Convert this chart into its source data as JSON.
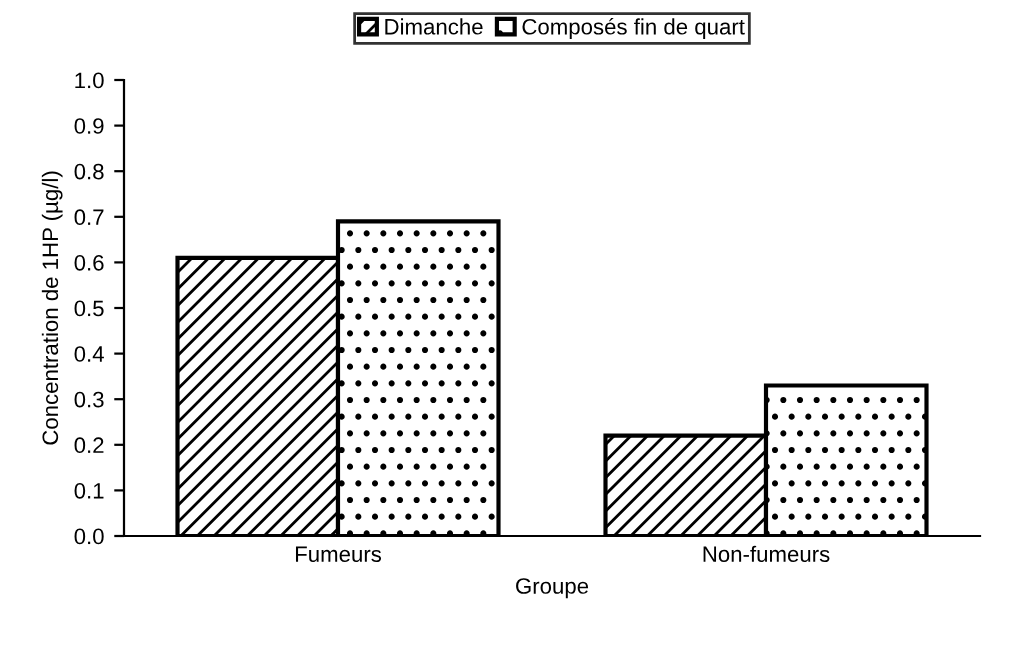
{
  "chart_data": {
    "type": "bar",
    "xlabel": "Groupe",
    "ylabel": "Concentration de 1HP (µg/l)",
    "categories": [
      "Fumeurs",
      "Non-fumeurs"
    ],
    "series": [
      {
        "name": "Dimanche",
        "color": "#000000",
        "values": [
          0.61,
          0.22
        ]
      },
      {
        "name": "Composés fin de quart",
        "color": "#000000",
        "values": [
          0.69,
          0.33
        ]
      }
    ],
    "ylim": [
      0,
      1
    ],
    "yticks": [
      {
        "value": 0,
        "label": "0.0"
      },
      {
        "value": 0.1,
        "label": "0.1"
      },
      {
        "value": 0.2,
        "label": "0.2"
      },
      {
        "value": 0.3,
        "label": "0.3"
      },
      {
        "value": 0.4,
        "label": "0.4"
      },
      {
        "value": 0.5,
        "label": "0.5"
      },
      {
        "value": 0.6,
        "label": "0.6"
      },
      {
        "value": 0.7,
        "label": "0.7"
      },
      {
        "value": 0.8,
        "label": "0.8"
      },
      {
        "value": 0.9,
        "label": "0.9"
      },
      {
        "value": 1,
        "label": "1.0"
      }
    ],
    "grid": false,
    "legend": "top"
  }
}
